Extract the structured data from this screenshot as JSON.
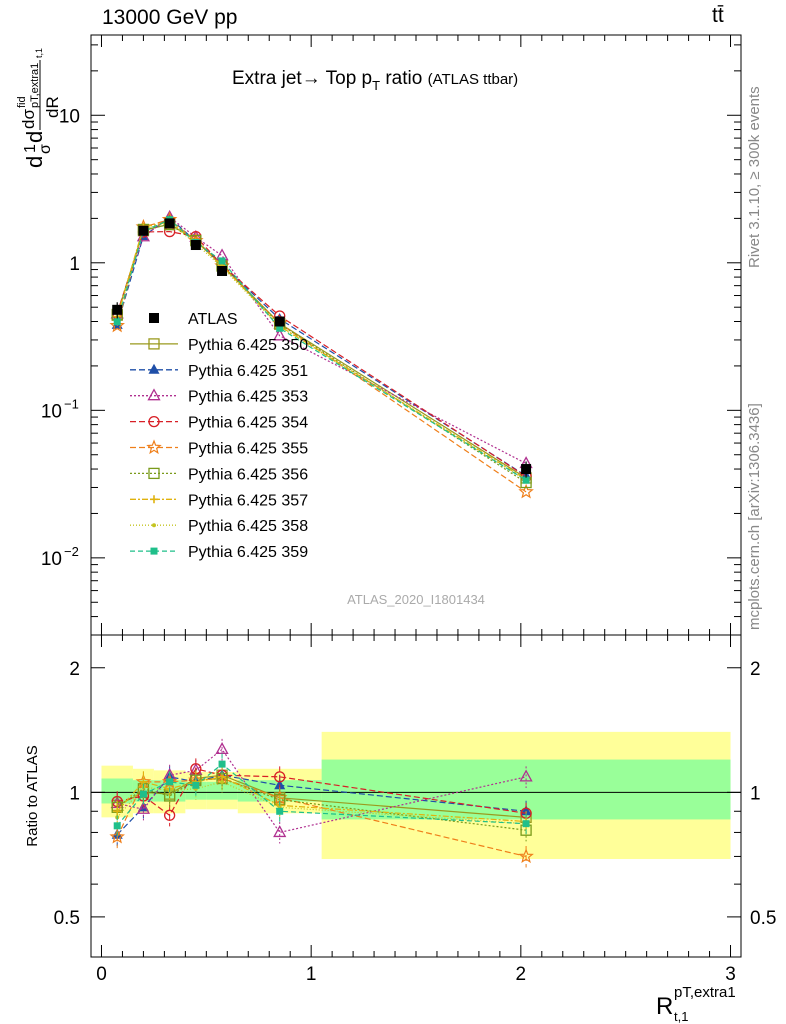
{
  "header": {
    "left": "13000 GeV pp",
    "right": "tt̄"
  },
  "side_labels": {
    "rivet": "Rivet 3.1.10, ≥ 300k events",
    "mcplots": "mcplots.cern.ch [arXiv:1306.3436]"
  },
  "plot_title": "Extra jet→ Top p",
  "plot_title_sub": "T",
  "plot_title_tail": " ratio",
  "plot_title_small": "(ATLAS ttbar)",
  "analysis_label": "ATLAS_2020_I1801434",
  "ratio_ylabel": "Ratio to ATLAS",
  "main_ylabel_parts": [
    "d",
    "1",
    "σ",
    "d",
    "dσ",
    "fid",
    "pT,extra1",
    "t,1",
    "dR"
  ],
  "xlabel_main": "R",
  "xlabel_sup": "pT,extra1",
  "xlabel_sub": "t,1",
  "colors": {
    "atlas": "#000000",
    "band_green": "#99ff99",
    "band_yellow": "#ffff99"
  },
  "chart_data": {
    "type": "line",
    "xlim": [
      -0.05,
      3.05
    ],
    "main_ylim": [
      0.003,
      35
    ],
    "main_yscale": "log",
    "ratio_ylim": [
      0.4,
      2.4
    ],
    "ratio_yscale": "log",
    "x_ticks": [
      "0",
      "1",
      "2",
      "3"
    ],
    "main_y_ticks": [
      "10",
      "1",
      "10",
      "10"
    ],
    "main_y_tick_exps": [
      "",
      "",
      "−1",
      "−2"
    ],
    "main_y_tick_values": [
      10,
      1,
      0.1,
      0.01
    ],
    "ratio_y_ticks": [
      "2",
      "1",
      "0.5"
    ],
    "ratio_y_tick_values": [
      2,
      1,
      0.5
    ],
    "x": [
      0.075,
      0.2,
      0.325,
      0.45,
      0.575,
      0.85,
      2.025
    ],
    "bin_edges": [
      0.0,
      0.15,
      0.25,
      0.4,
      0.5,
      0.65,
      1.05,
      3.0
    ],
    "atlas": {
      "name": "ATLAS",
      "values": [
        0.48,
        1.65,
        1.85,
        1.32,
        0.88,
        0.4,
        0.04
      ],
      "errors": [
        0.06,
        0.08,
        0.08,
        0.07,
        0.05,
        0.03,
        0.005
      ]
    },
    "ratio_band_green": [
      [
        0.94,
        1.08
      ],
      [
        0.95,
        1.07
      ],
      [
        0.95,
        1.07
      ],
      [
        0.96,
        1.06
      ],
      [
        0.96,
        1.06
      ],
      [
        0.95,
        1.07
      ],
      [
        0.86,
        1.2
      ]
    ],
    "ratio_band_yellow": [
      [
        0.87,
        1.16
      ],
      [
        0.89,
        1.14
      ],
      [
        0.89,
        1.13
      ],
      [
        0.91,
        1.12
      ],
      [
        0.91,
        1.12
      ],
      [
        0.89,
        1.14
      ],
      [
        0.69,
        1.4
      ]
    ],
    "series": [
      {
        "name": "Pythia 6.425 350",
        "color": "#9a9a1e",
        "marker": "open-square",
        "dash": "",
        "ratio": [
          0.93,
          1.0,
          0.99,
          1.08,
          1.1,
          0.97,
          0.87
        ]
      },
      {
        "name": "Pythia 6.425 351",
        "color": "#1f4fa8",
        "marker": "filled-triangle",
        "dash": "6,3",
        "ratio": [
          0.79,
          0.92,
          1.09,
          1.06,
          1.1,
          1.04,
          0.9
        ]
      },
      {
        "name": "Pythia 6.425 353",
        "color": "#b03090",
        "marker": "open-triangle",
        "dash": "2,2",
        "ratio": [
          0.94,
          0.91,
          1.1,
          1.13,
          1.27,
          0.8,
          1.09
        ]
      },
      {
        "name": "Pythia 6.425 354",
        "color": "#d81f26",
        "marker": "open-circle",
        "dash": "6,3",
        "ratio": [
          0.95,
          0.98,
          0.88,
          1.14,
          1.1,
          1.09,
          0.89
        ]
      },
      {
        "name": "Pythia 6.425 355",
        "color": "#ef7f1a",
        "marker": "star",
        "dash": "6,3",
        "ratio": [
          0.78,
          1.06,
          1.06,
          1.07,
          1.08,
          0.97,
          0.7
        ]
      },
      {
        "name": "Pythia 6.425 356",
        "color": "#7a9a1a",
        "marker": "open-square",
        "dash": "2,2",
        "ratio": [
          0.92,
          1.02,
          0.98,
          1.07,
          1.08,
          0.96,
          0.81
        ]
      },
      {
        "name": "Pythia 6.425 357",
        "color": "#e0b20e",
        "marker": "cross",
        "dash": "6,2,2,2",
        "ratio": [
          0.9,
          1.06,
          1.02,
          1.06,
          1.09,
          0.93,
          0.85
        ]
      },
      {
        "name": "Pythia 6.425 358",
        "color": "#c4c420",
        "marker": "dot",
        "dash": "1,2",
        "ratio": [
          0.87,
          1.03,
          1.01,
          1.02,
          1.06,
          0.92,
          0.84
        ]
      },
      {
        "name": "Pythia 6.425 359",
        "color": "#1fbf8a",
        "marker": "filled-square",
        "dash": "5,3",
        "ratio": [
          0.83,
          0.99,
          1.06,
          1.04,
          1.17,
          0.9,
          0.84
        ]
      }
    ]
  }
}
